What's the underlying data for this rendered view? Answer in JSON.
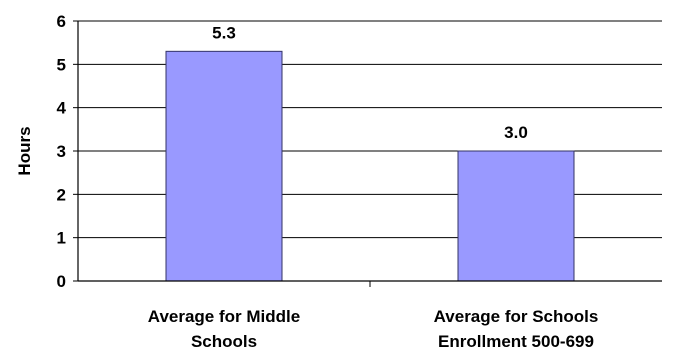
{
  "chart_data": {
    "type": "bar",
    "title": "",
    "xlabel": "",
    "ylabel": "Hours",
    "ylim": [
      0,
      6
    ],
    "yticks": [
      "0",
      "1",
      "2",
      "3",
      "4",
      "5",
      "6"
    ],
    "grid": true,
    "legend": "none",
    "categories": [
      [
        "Average for Middle",
        "Schools"
      ],
      [
        "Average for Schools",
        "Enrollment 500-699"
      ]
    ],
    "values": [
      5.3,
      3.0
    ],
    "data_labels": [
      "5.3",
      "3.0"
    ],
    "colors": {
      "bar_fill": "#9999ff",
      "bar_stroke": "#333366",
      "grid": "#000000",
      "axis": "#000000"
    }
  }
}
